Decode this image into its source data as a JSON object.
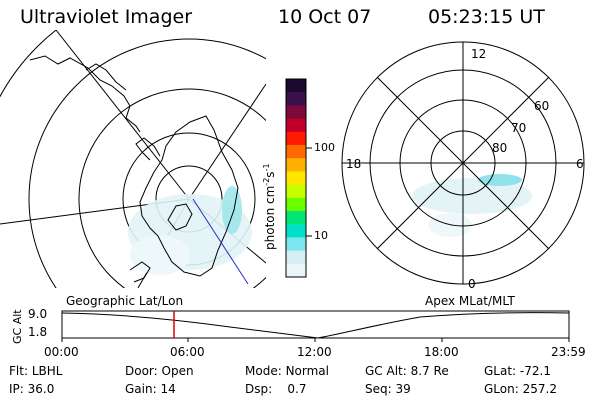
{
  "header": {
    "title": "Ultraviolet Imager",
    "date": "10 Oct 07",
    "time": "05:23:15 UT"
  },
  "left_map": {
    "label": "Geographic Lat/Lon"
  },
  "right_map": {
    "label": "Apex MLat/MLT",
    "mlt_labels": {
      "top": "12",
      "left": "18",
      "right": "6",
      "bottom": "0"
    },
    "lat_labels": [
      "60",
      "70",
      "80"
    ]
  },
  "colorbar": {
    "unit": "photon cm",
    "unit_exp1": "-2",
    "unit_mid": "s",
    "unit_exp2": "-1",
    "ticks": [
      "100",
      "10"
    ],
    "colors": [
      "#1a0a2e",
      "#3a0f4a",
      "#7a0a3a",
      "#c0002a",
      "#ff1a00",
      "#ff6a00",
      "#ffb000",
      "#ffe600",
      "#c8ff00",
      "#6aff00",
      "#00e676",
      "#00e0c8",
      "#7ae6ee",
      "#d4eef2",
      "#eaf6f8"
    ]
  },
  "altitude_plot": {
    "y_label": "GC Alt",
    "y_ticks": [
      "9.0",
      "1.8"
    ],
    "x_ticks": [
      "00:00",
      "06:00",
      "12:00",
      "18:00",
      "23:59"
    ],
    "marker_color": "#e00000"
  },
  "status": {
    "flt_label": "Flt:",
    "flt_value": "LBHL",
    "ip_label": "IP:",
    "ip_value": "36.0",
    "door_label": "Door:",
    "door_value": "Open",
    "gain_label": "Gain:",
    "gain_value": "14",
    "mode_label": "Mode:",
    "mode_value": "Normal",
    "dsp_label": "Dsp:",
    "dsp_value": "0.7",
    "gcalt_label": "GC Alt:",
    "gcalt_value": "8.7 Re",
    "seq_label": "Seq:",
    "seq_value": "39",
    "glat_label": "GLat:",
    "glat_value": "-72.1",
    "glon_label": "GLon:",
    "glon_value": "257.2"
  }
}
